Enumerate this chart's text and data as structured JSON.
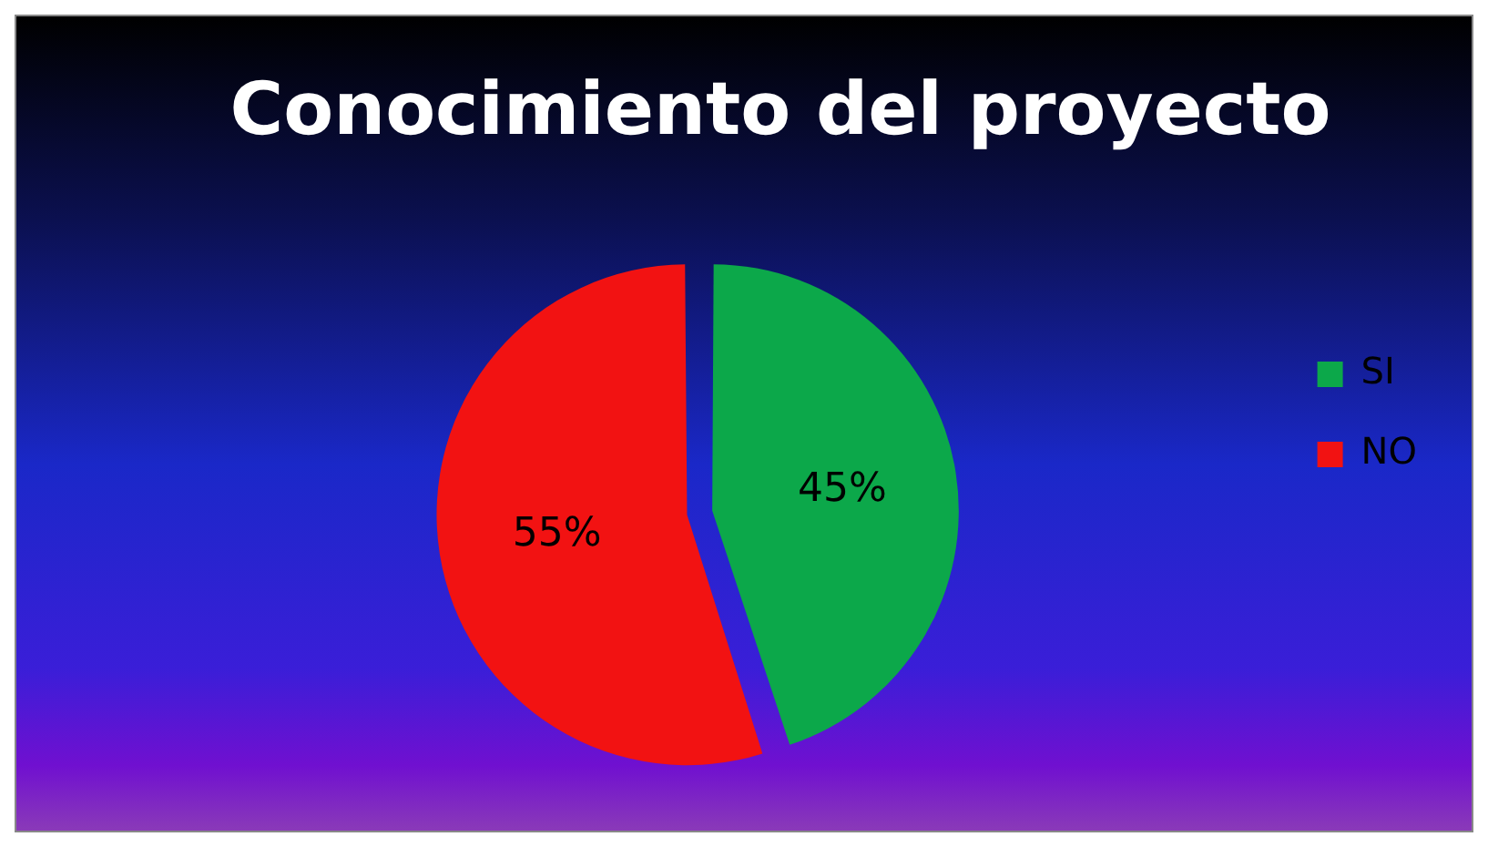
{
  "chart_data": {
    "type": "pie",
    "title": "Conocimiento del proyecto",
    "categories": [
      "SI",
      "NO"
    ],
    "values": [
      45,
      55
    ],
    "colors": [
      "#0ca84a",
      "#f21212"
    ],
    "value_labels": [
      "45%",
      "55%"
    ],
    "legend": "right"
  }
}
